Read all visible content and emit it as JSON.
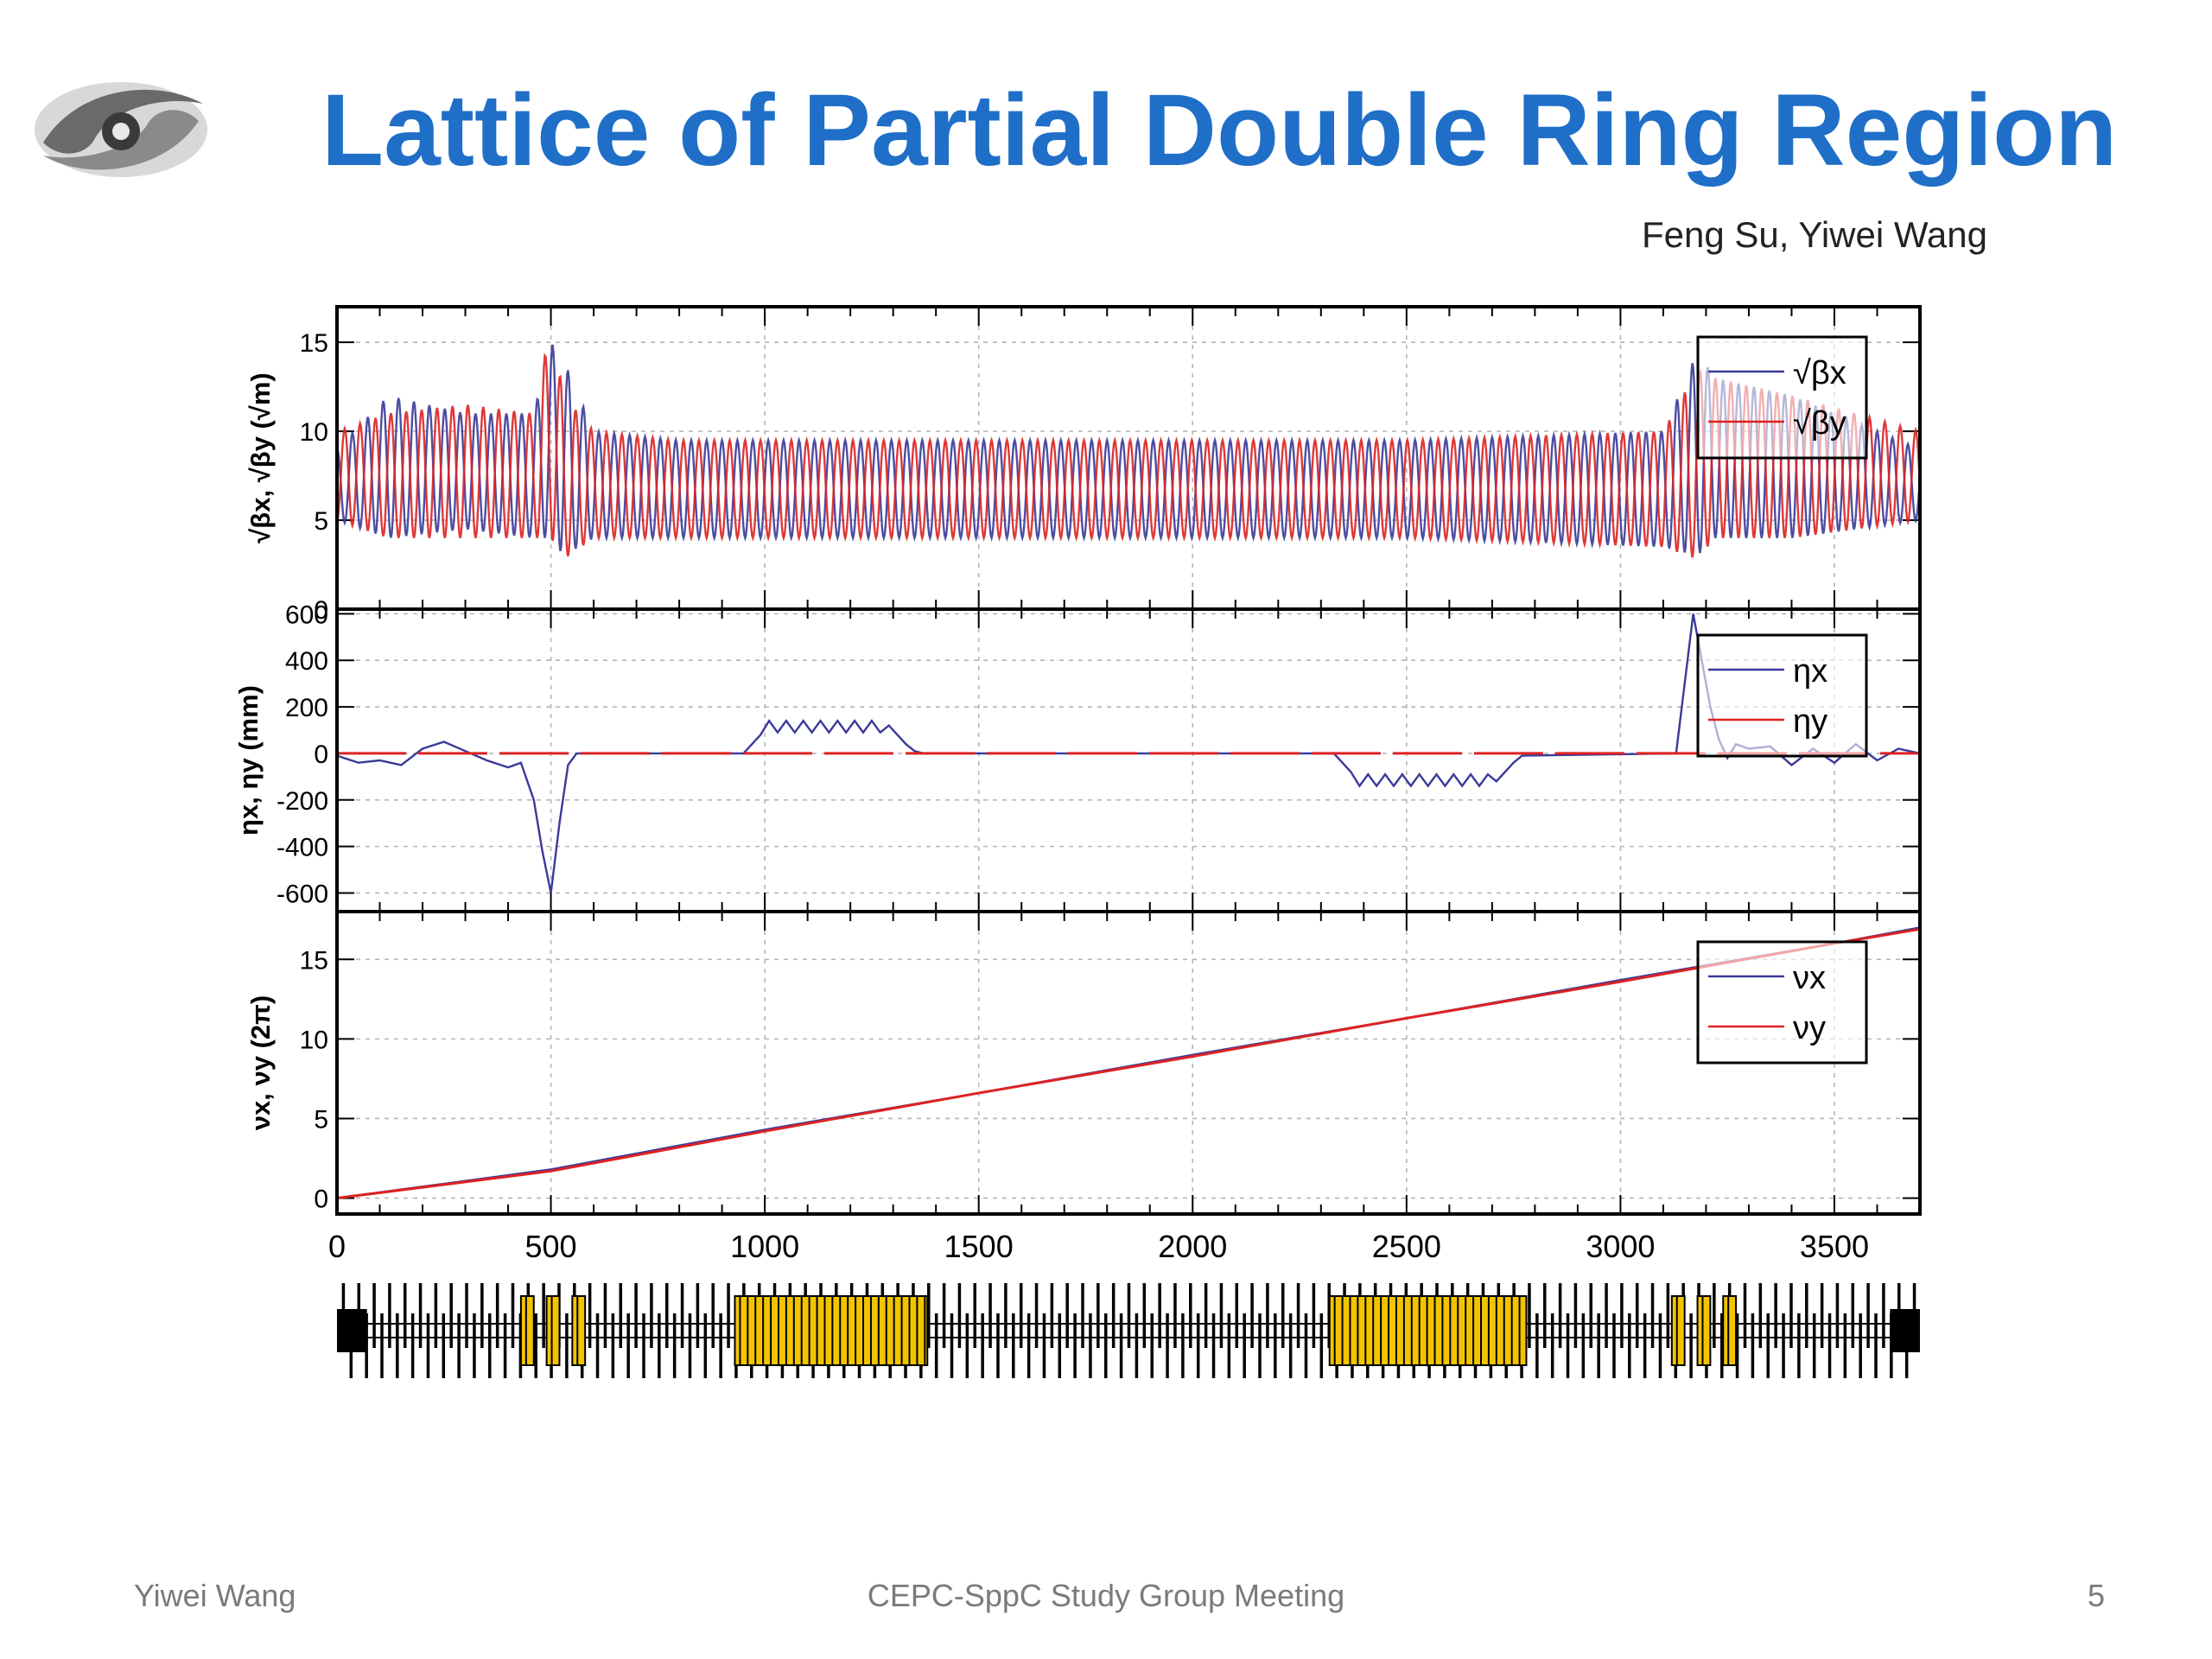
{
  "slide": {
    "title": "Lattice of Partial Double Ring Region",
    "authors": "Feng Su, Yiwei Wang",
    "footer_left": "Yiwei Wang",
    "footer_center": "CEPC-SppC Study Group Meeting",
    "page_number": "5"
  },
  "colors": {
    "title": "#1f6fc8",
    "series_x": "#3a3a9a",
    "series_y": "#dd2222",
    "magnet": "#f2c400"
  },
  "icons": {
    "logo": "institute-logo-icon"
  },
  "chart_data": [
    {
      "type": "line",
      "ylabel": "√βx, √βy (√m)",
      "xlim": [
        0,
        3700
      ],
      "ylim": [
        0,
        17
      ],
      "y_ticks": [
        0,
        5,
        10,
        15
      ],
      "grid": true,
      "legend_position": "top-right",
      "series": [
        {
          "name": "√βx",
          "envelope_x": [
            0,
            120,
            300,
            460,
            500,
            530,
            600,
            800,
            1500,
            2500,
            3100,
            3180,
            3220,
            3400,
            3700
          ],
          "max": [
            9,
            12,
            11,
            11,
            15,
            14,
            10,
            9.5,
            9.5,
            9.5,
            10,
            14.5,
            13,
            12,
            9
          ],
          "min": [
            5,
            4,
            4.5,
            4,
            4,
            3,
            4,
            4,
            4,
            4,
            3.5,
            3,
            4,
            4,
            5
          ]
        },
        {
          "name": "√βy",
          "envelope_x": [
            0,
            120,
            300,
            460,
            500,
            530,
            600,
            800,
            1500,
            2500,
            3100,
            3180,
            3220,
            3400,
            3700
          ],
          "max": [
            10,
            11,
            11.5,
            11,
            16,
            12,
            10,
            9.5,
            9.5,
            9.5,
            10,
            13.5,
            13,
            12,
            10
          ],
          "min": [
            5,
            4,
            4,
            4,
            4,
            2.8,
            4,
            4,
            4,
            4,
            3.5,
            2.8,
            4,
            4,
            5
          ]
        }
      ]
    },
    {
      "type": "line",
      "ylabel": "ηx, ηy (mm)",
      "xlim": [
        0,
        3700
      ],
      "ylim": [
        -680,
        620
      ],
      "y_ticks": [
        -600,
        -400,
        -200,
        0,
        200,
        400,
        600
      ],
      "grid": true,
      "legend_position": "top-right",
      "series": [
        {
          "name": "ηx",
          "x": [
            0,
            50,
            100,
            150,
            200,
            250,
            300,
            350,
            400,
            430,
            460,
            480,
            500,
            520,
            540,
            560,
            580,
            600,
            950,
            970,
            990,
            1010,
            1030,
            1050,
            1070,
            1090,
            1110,
            1130,
            1150,
            1170,
            1190,
            1210,
            1230,
            1250,
            1270,
            1290,
            1310,
            1330,
            1350,
            1370,
            2330,
            2350,
            2370,
            2390,
            2410,
            2430,
            2450,
            2470,
            2490,
            2510,
            2530,
            2550,
            2570,
            2590,
            2610,
            2630,
            2650,
            2670,
            2690,
            2710,
            2730,
            2750,
            2770,
            3130,
            3150,
            3170,
            3190,
            3210,
            3230,
            3250,
            3270,
            3300,
            3350,
            3400,
            3450,
            3500,
            3550,
            3600,
            3650,
            3700
          ],
          "values": [
            -10,
            -40,
            -30,
            -50,
            20,
            50,
            10,
            -30,
            -60,
            -40,
            -200,
            -420,
            -600,
            -300,
            -50,
            0,
            0,
            0,
            0,
            40,
            80,
            140,
            90,
            140,
            90,
            140,
            90,
            140,
            90,
            140,
            90,
            140,
            90,
            140,
            90,
            120,
            80,
            40,
            10,
            0,
            0,
            -40,
            -80,
            -140,
            -90,
            -140,
            -90,
            -140,
            -90,
            -140,
            -90,
            -140,
            -90,
            -140,
            -90,
            -140,
            -90,
            -140,
            -90,
            -120,
            -80,
            -40,
            -10,
            0,
            300,
            600,
            400,
            200,
            60,
            -20,
            40,
            20,
            30,
            -50,
            20,
            -40,
            40,
            -30,
            20,
            0
          ]
        },
        {
          "name": "ηy",
          "x": [
            0,
            3700
          ],
          "values": [
            0,
            0
          ]
        }
      ]
    },
    {
      "type": "line",
      "ylabel": "νx, νy (2π)",
      "xlabel": "",
      "xlim": [
        0,
        3700
      ],
      "ylim": [
        -1,
        18
      ],
      "x_ticks": [
        0,
        500,
        1000,
        1500,
        2000,
        2500,
        3000,
        3500
      ],
      "y_ticks": [
        0,
        5,
        10,
        15
      ],
      "grid": true,
      "legend_position": "top-right",
      "series": [
        {
          "name": "νx",
          "x": [
            0,
            500,
            1000,
            1500,
            2000,
            2500,
            3000,
            3500,
            3700
          ],
          "values": [
            0,
            1.8,
            4.3,
            6.6,
            9.0,
            11.3,
            13.7,
            16.0,
            17.0
          ]
        },
        {
          "name": "νy",
          "x": [
            0,
            500,
            1000,
            1500,
            2000,
            2500,
            3000,
            3500,
            3700
          ],
          "values": [
            0,
            1.7,
            4.2,
            6.6,
            8.9,
            11.3,
            13.6,
            16.0,
            16.9
          ]
        }
      ]
    }
  ],
  "lattice_bar": {
    "xlim": [
      0,
      3700
    ],
    "cell_spacing": 36,
    "bend_blocks": [
      [
        430,
        460
      ],
      [
        490,
        520
      ],
      [
        550,
        580
      ],
      [
        930,
        1380
      ],
      [
        2320,
        2780
      ],
      [
        3120,
        3150
      ],
      [
        3180,
        3210
      ],
      [
        3240,
        3270
      ]
    ],
    "end_blocks": [
      [
        0,
        70
      ],
      [
        3630,
        3700
      ]
    ]
  }
}
